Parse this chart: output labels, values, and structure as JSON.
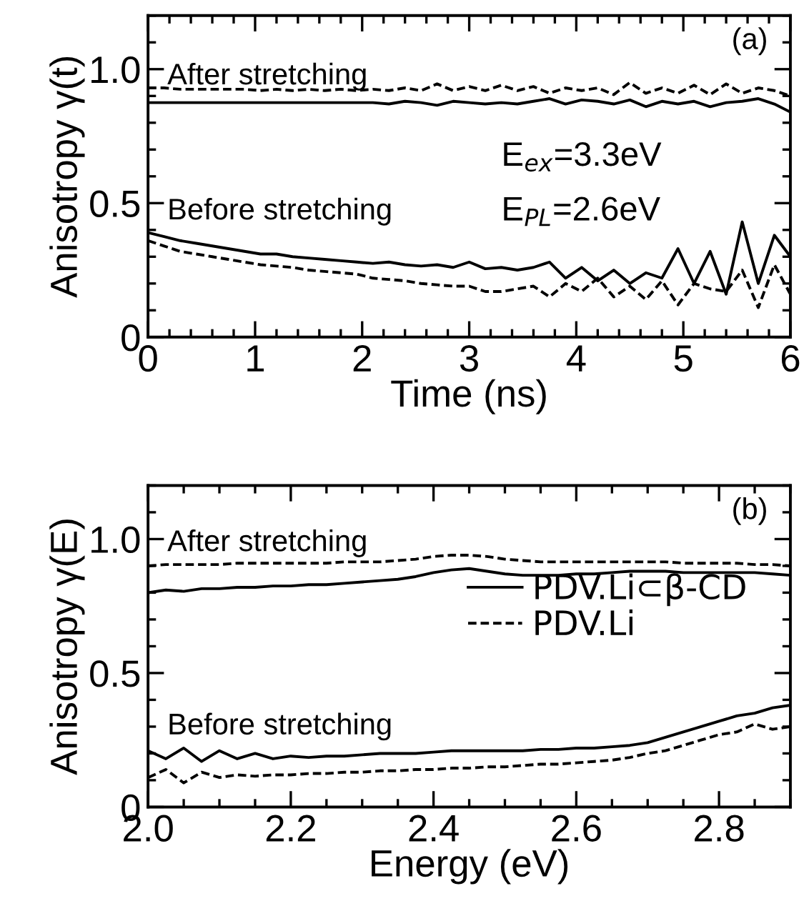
{
  "chart_data": [
    {
      "type": "line",
      "xlabel": "Time (ns)",
      "ylabel": "Anisotropy γ(t)",
      "x": [
        0,
        0.15,
        0.3,
        0.45,
        0.6,
        0.75,
        0.9,
        1.05,
        1.2,
        1.35,
        1.5,
        1.65,
        1.8,
        1.95,
        2.1,
        2.25,
        2.4,
        2.55,
        2.7,
        2.85,
        3.0,
        3.15,
        3.3,
        3.45,
        3.6,
        3.75,
        3.9,
        4.05,
        4.2,
        4.35,
        4.5,
        4.65,
        4.8,
        4.95,
        5.1,
        5.25,
        5.4,
        5.55,
        5.7,
        5.85,
        6.0
      ],
      "series": [
        {
          "color": "#000000",
          "line_style": "solid",
          "values": [
            0.875,
            0.875,
            0.875,
            0.875,
            0.875,
            0.875,
            0.875,
            0.875,
            0.875,
            0.875,
            0.875,
            0.875,
            0.875,
            0.875,
            0.875,
            0.87,
            0.88,
            0.875,
            0.865,
            0.88,
            0.875,
            0.87,
            0.875,
            0.87,
            0.88,
            0.89,
            0.87,
            0.885,
            0.88,
            0.87,
            0.885,
            0.86,
            0.88,
            0.87,
            0.88,
            0.86,
            0.875,
            0.88,
            0.89,
            0.87,
            0.84
          ]
        },
        {
          "color": "#000000",
          "line_style": "dashed",
          "values": [
            0.93,
            0.93,
            0.925,
            0.925,
            0.925,
            0.925,
            0.925,
            0.92,
            0.925,
            0.92,
            0.925,
            0.92,
            0.925,
            0.92,
            0.925,
            0.92,
            0.93,
            0.92,
            0.945,
            0.92,
            0.935,
            0.92,
            0.94,
            0.92,
            0.935,
            0.91,
            0.93,
            0.92,
            0.93,
            0.905,
            0.95,
            0.91,
            0.93,
            0.91,
            0.94,
            0.905,
            0.945,
            0.91,
            0.93,
            0.92,
            0.9
          ]
        },
        {
          "color": "#000000",
          "line_style": "solid",
          "values": [
            0.39,
            0.375,
            0.36,
            0.35,
            0.34,
            0.33,
            0.32,
            0.31,
            0.31,
            0.3,
            0.295,
            0.29,
            0.285,
            0.28,
            0.275,
            0.28,
            0.27,
            0.265,
            0.27,
            0.26,
            0.28,
            0.255,
            0.26,
            0.25,
            0.26,
            0.28,
            0.22,
            0.26,
            0.21,
            0.25,
            0.2,
            0.24,
            0.22,
            0.33,
            0.2,
            0.32,
            0.16,
            0.43,
            0.2,
            0.38,
            0.3
          ]
        },
        {
          "color": "#000000",
          "line_style": "dashed",
          "values": [
            0.36,
            0.34,
            0.32,
            0.31,
            0.3,
            0.29,
            0.28,
            0.27,
            0.265,
            0.26,
            0.25,
            0.245,
            0.24,
            0.235,
            0.22,
            0.215,
            0.21,
            0.2,
            0.195,
            0.19,
            0.19,
            0.17,
            0.17,
            0.18,
            0.19,
            0.15,
            0.2,
            0.17,
            0.22,
            0.15,
            0.19,
            0.14,
            0.21,
            0.12,
            0.2,
            0.18,
            0.17,
            0.25,
            0.11,
            0.27,
            0.16
          ]
        }
      ],
      "xlim": [
        0,
        6
      ],
      "xticks": [
        0,
        1,
        2,
        3,
        4,
        5,
        6
      ],
      "ylim": [
        0,
        1.2
      ],
      "yticks": [
        0,
        0.5,
        {
          "value": 1,
          "label": "1.0"
        }
      ],
      "annotations": [
        "After stretching",
        "Before stretching",
        "(a)",
        "E$_{ex}$=3.3eV",
        "E$_{PL}$=2.6eV"
      ]
    },
    {
      "type": "line",
      "xlabel": "Energy (eV)",
      "ylabel": "Anisotropy γ(E)",
      "x": [
        2.0,
        2.025,
        2.05,
        2.075,
        2.1,
        2.125,
        2.15,
        2.175,
        2.2,
        2.225,
        2.25,
        2.275,
        2.3,
        2.325,
        2.35,
        2.375,
        2.4,
        2.425,
        2.45,
        2.475,
        2.5,
        2.525,
        2.55,
        2.575,
        2.6,
        2.625,
        2.65,
        2.675,
        2.7,
        2.725,
        2.75,
        2.775,
        2.8,
        2.825,
        2.85,
        2.875,
        2.9
      ],
      "series": [
        {
          "color": "#000000",
          "line_style": "solid",
          "name": "PDV.Li⊂β-CD",
          "values": [
            0.8,
            0.81,
            0.805,
            0.815,
            0.815,
            0.82,
            0.82,
            0.825,
            0.825,
            0.83,
            0.83,
            0.835,
            0.84,
            0.845,
            0.85,
            0.86,
            0.875,
            0.885,
            0.89,
            0.88,
            0.87,
            0.865,
            0.865,
            0.865,
            0.87,
            0.87,
            0.875,
            0.88,
            0.88,
            0.88,
            0.875,
            0.875,
            0.875,
            0.875,
            0.875,
            0.87,
            0.865
          ]
        },
        {
          "color": "#000000",
          "line_style": "dashed",
          "name": "PDV.Li",
          "values": [
            0.9,
            0.905,
            0.905,
            0.905,
            0.905,
            0.91,
            0.91,
            0.91,
            0.91,
            0.91,
            0.91,
            0.915,
            0.915,
            0.915,
            0.92,
            0.925,
            0.935,
            0.94,
            0.94,
            0.935,
            0.925,
            0.92,
            0.915,
            0.915,
            0.915,
            0.915,
            0.915,
            0.915,
            0.915,
            0.915,
            0.91,
            0.91,
            0.91,
            0.91,
            0.905,
            0.905,
            0.9
          ]
        },
        {
          "color": "#000000",
          "line_style": "solid",
          "values": [
            0.21,
            0.18,
            0.22,
            0.17,
            0.21,
            0.18,
            0.2,
            0.18,
            0.19,
            0.185,
            0.19,
            0.19,
            0.195,
            0.2,
            0.2,
            0.2,
            0.205,
            0.21,
            0.21,
            0.21,
            0.21,
            0.21,
            0.215,
            0.215,
            0.22,
            0.22,
            0.225,
            0.23,
            0.24,
            0.26,
            0.28,
            0.3,
            0.32,
            0.34,
            0.35,
            0.37,
            0.38
          ]
        },
        {
          "color": "#000000",
          "line_style": "dashed",
          "values": [
            0.11,
            0.14,
            0.09,
            0.13,
            0.11,
            0.12,
            0.115,
            0.12,
            0.12,
            0.125,
            0.125,
            0.13,
            0.13,
            0.135,
            0.135,
            0.14,
            0.14,
            0.145,
            0.145,
            0.15,
            0.15,
            0.155,
            0.16,
            0.16,
            0.165,
            0.17,
            0.175,
            0.185,
            0.2,
            0.21,
            0.23,
            0.25,
            0.27,
            0.28,
            0.31,
            0.29,
            0.3
          ]
        }
      ],
      "xlim": [
        2.0,
        2.9
      ],
      "xticks": [
        {
          "value": 2,
          "label": "2.0"
        },
        2.2,
        2.4,
        2.6,
        2.8
      ],
      "ylim": [
        0,
        1.2
      ],
      "yticks": [
        0,
        0.5,
        {
          "value": 1,
          "label": "1.0"
        }
      ],
      "legend": "right",
      "annotations": [
        "After stretching",
        "Before stretching",
        "(b)"
      ]
    }
  ]
}
